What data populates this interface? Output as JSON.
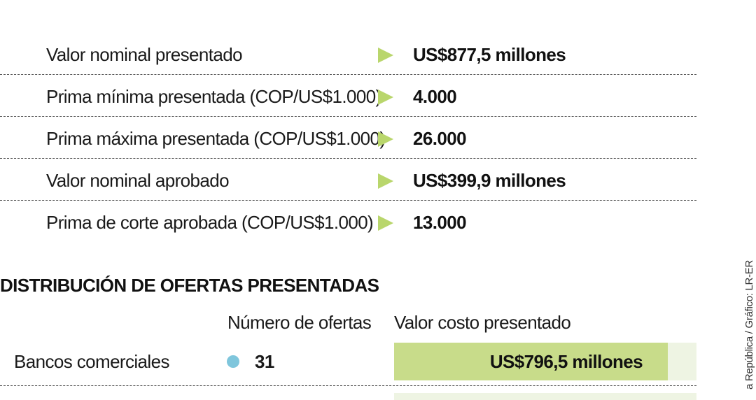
{
  "summary": [
    {
      "label": "Valor nominal presentado",
      "value": "US$877,5 millones"
    },
    {
      "label": "Prima mínima presentada (COP/US$1.000)",
      "value": "4.000"
    },
    {
      "label": "Prima máxima presentada (COP/US$1.000)",
      "value": "26.000"
    },
    {
      "label": "Valor nominal aprobado",
      "value": "US$399,9 millones"
    },
    {
      "label": "Prima de corte aprobada (COP/US$1.000)",
      "value": "13.000"
    }
  ],
  "distribution": {
    "title": "DISTRIBUCIÓN DE OFERTAS PRESENTADAS",
    "col_offers": "Número de ofertas",
    "col_value": "Valor costo presentado",
    "rows": [
      {
        "category": "Bancos comerciales",
        "offers": "31",
        "value_label": "US$796,5 millones"
      }
    ]
  },
  "credit": "a República / Gráfico: LR-ER",
  "colors": {
    "accent_green": "#b9d66c",
    "bar_green": "#c8dc8a",
    "dot_blue": "#7fc6dc"
  },
  "chart_data": {
    "type": "bar",
    "title": "DISTRIBUCIÓN DE OFERTAS PRESENTADAS",
    "categories": [
      "Bancos comerciales"
    ],
    "series": [
      {
        "name": "Número de ofertas",
        "values": [
          31
        ]
      },
      {
        "name": "Valor costo presentado",
        "values": [
          796.5
        ]
      }
    ],
    "bar_fraction": [
      0.905
    ]
  }
}
